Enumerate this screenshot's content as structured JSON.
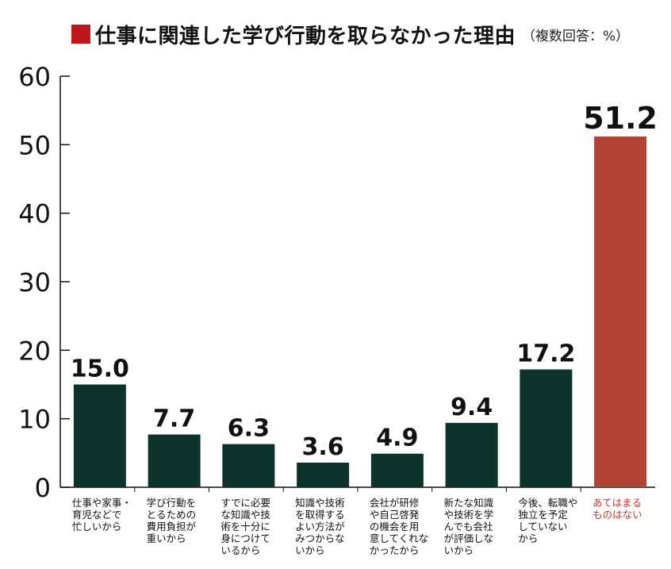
{
  "chart_data": {
    "type": "bar",
    "title": "仕事に関連した学び行動を取らなかった理由",
    "subtitle": "（複数回答：%）",
    "xlabel": "",
    "ylabel": "",
    "ylim": [
      0,
      60
    ],
    "yticks": [
      0,
      10,
      20,
      30,
      40,
      50,
      60
    ],
    "grid": false,
    "categories": [
      [
        "仕事や家事・",
        "育児などで",
        "忙しいから"
      ],
      [
        "学び行動を",
        "とるための",
        "費用負担が",
        "重いから"
      ],
      [
        "すでに必要",
        "な知識や技",
        "術を十分に",
        "身につけて",
        "いるから"
      ],
      [
        "知識や技術",
        "を取得する",
        "よい方法が",
        "みつからな",
        "いから"
      ],
      [
        "会社が研修",
        "や自己啓発",
        "の機会を用",
        "意してくれな",
        "かったから"
      ],
      [
        "新たな知識",
        "や技術を学",
        "んでも会社",
        "が評価しな",
        "いから"
      ],
      [
        "今後、転職や",
        "独立を予定",
        "していない",
        "から"
      ],
      [
        "あてはまる",
        "ものはない"
      ]
    ],
    "values": [
      15.0,
      7.7,
      6.3,
      3.6,
      4.9,
      9.4,
      17.2,
      51.2
    ],
    "value_labels": [
      "15.0",
      "7.7",
      "6.3",
      "3.6",
      "4.9",
      "9.4",
      "17.2",
      "51.2"
    ],
    "highlight_index": 7,
    "colors": {
      "bar": "#0d342c",
      "highlight_bar": "#b24336",
      "highlight_label": "#c0392b",
      "title_square": "#c0171d",
      "text": "#111111"
    }
  }
}
